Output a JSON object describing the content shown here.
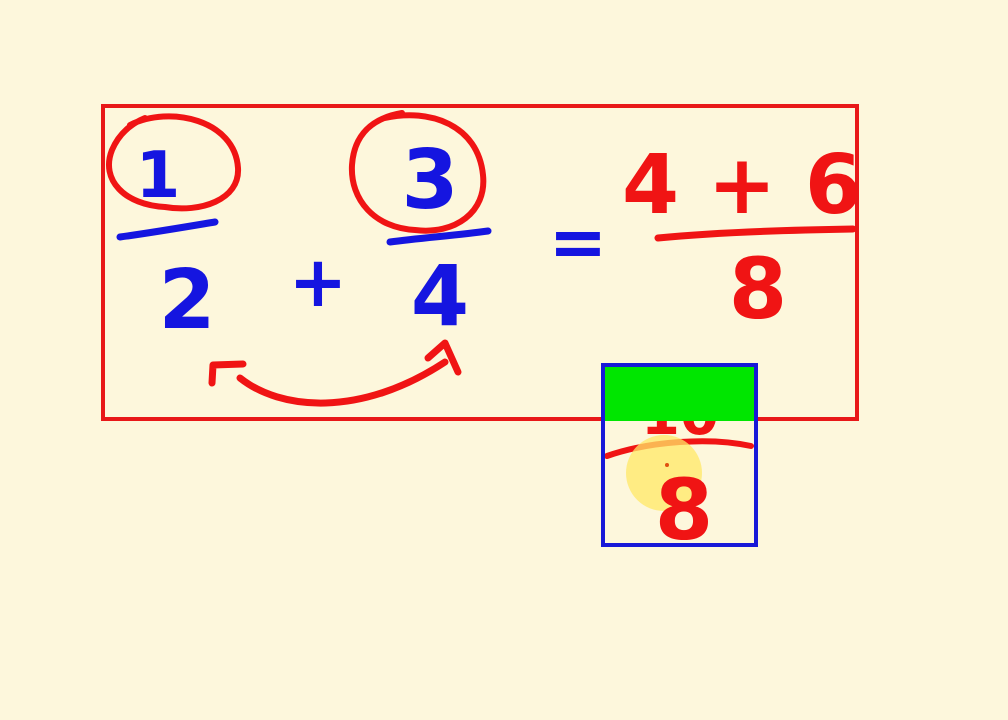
{
  "colors": {
    "background": "#fdf7dc",
    "ink_blue": "#1515e0",
    "ink_red": "#f01414",
    "frame_red": "#e81818",
    "frame_blue": "#1818d8",
    "highlight_green": "#00e600",
    "cursor_yellow": "#ffe866"
  },
  "equation": {
    "fraction1": {
      "numerator": "1",
      "denominator": "2"
    },
    "operator": "+",
    "fraction2": {
      "numerator": "3",
      "denominator": "4"
    },
    "equals": "=",
    "result": {
      "numerator": "4 + 6",
      "denominator": "8"
    }
  },
  "inset": {
    "numerator_fragment": "10",
    "denominator": "8"
  }
}
